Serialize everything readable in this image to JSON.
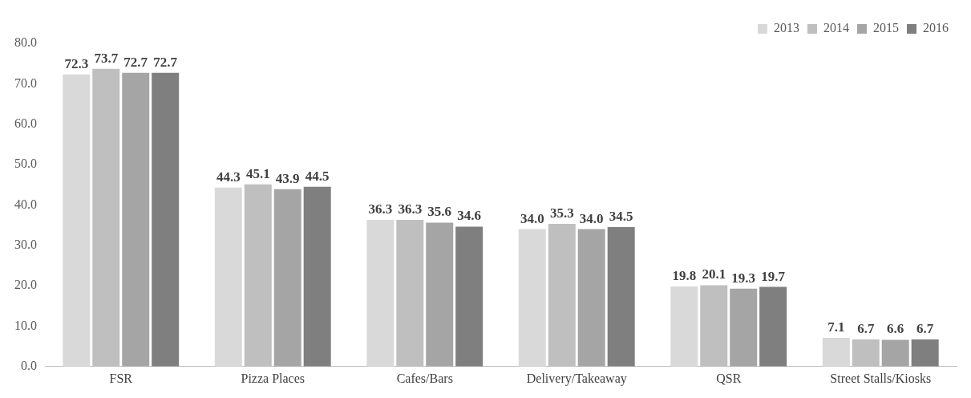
{
  "chart_data": {
    "type": "bar",
    "categories": [
      "FSR",
      "Pizza Places",
      "Cafes/Bars",
      "Delivery/Takeaway",
      "QSR",
      "Street Stalls/Kiosks"
    ],
    "series": [
      {
        "name": "2013",
        "color": "#d9d9d9",
        "values": [
          72.3,
          44.3,
          36.3,
          34.0,
          19.8,
          7.1
        ],
        "value_labels": [
          "72.3",
          "44.3",
          "36.3",
          "34.0",
          "19.8",
          "7.1"
        ]
      },
      {
        "name": "2014",
        "color": "#bfbfbf",
        "values": [
          73.7,
          45.1,
          36.3,
          35.3,
          20.1,
          6.7
        ],
        "value_labels": [
          "73.7",
          "45.1",
          "36.3",
          "35.3",
          "20.1",
          "6.7"
        ]
      },
      {
        "name": "2015",
        "color": "#a5a5a5",
        "values": [
          72.7,
          43.9,
          35.6,
          34.0,
          19.3,
          6.6
        ],
        "value_labels": [
          "72.7",
          "43.9",
          "35.6",
          "34.0",
          "19.3",
          "6.6"
        ]
      },
      {
        "name": "2016",
        "color": "#7f7f7f",
        "values": [
          72.7,
          44.5,
          34.6,
          34.5,
          19.7,
          6.7
        ],
        "value_labels": [
          "72.7",
          "44.5",
          "34.6",
          "34.5",
          "19.7",
          "6.7"
        ]
      }
    ],
    "ylim": [
      0,
      80
    ],
    "yticks": [
      {
        "value": 0,
        "label": "0.0"
      },
      {
        "value": 10,
        "label": "10.0"
      },
      {
        "value": 20,
        "label": "20.0"
      },
      {
        "value": 30,
        "label": "30.0"
      },
      {
        "value": 40,
        "label": "40.0"
      },
      {
        "value": 50,
        "label": "50.0"
      },
      {
        "value": 60,
        "label": "60.0"
      },
      {
        "value": 70,
        "label": "70.0"
      },
      {
        "value": 80,
        "label": "80.0"
      }
    ],
    "grid": false,
    "legend": "top right"
  }
}
